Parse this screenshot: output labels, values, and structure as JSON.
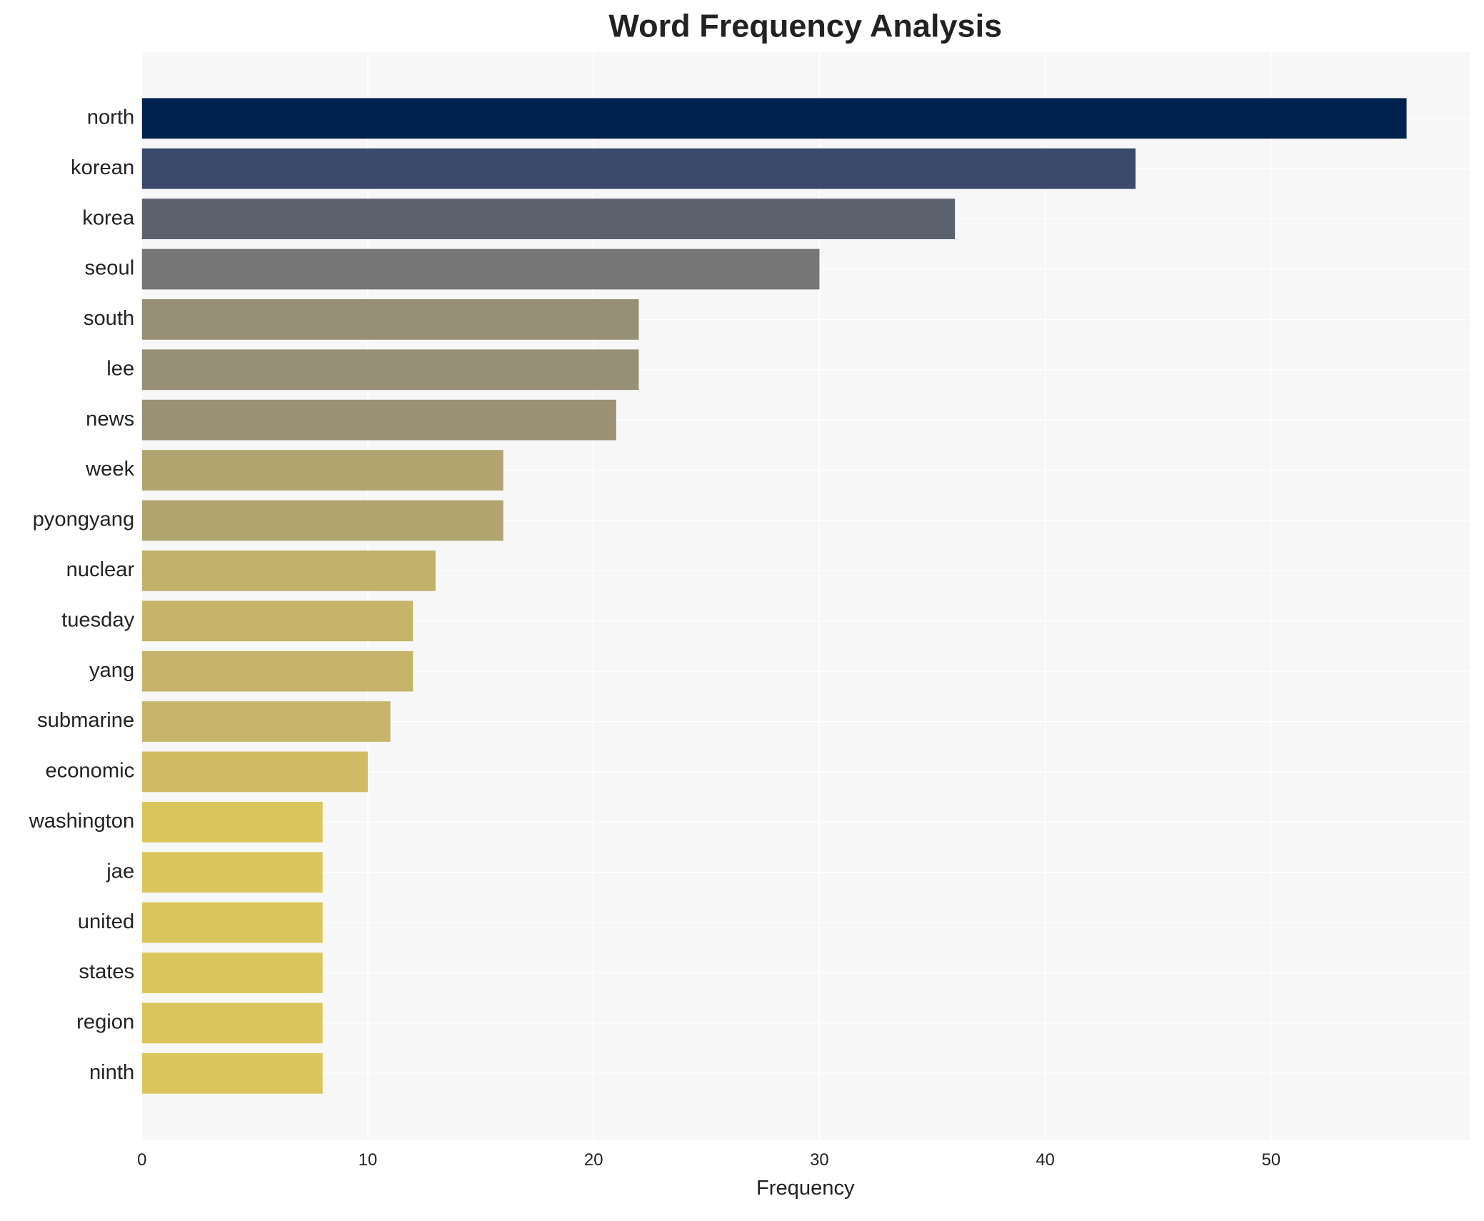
{
  "chart_data": {
    "type": "barh",
    "title": "Word Frequency Analysis",
    "x_label": "Frequency",
    "categories": [
      "north",
      "korean",
      "korea",
      "seoul",
      "south",
      "lee",
      "news",
      "week",
      "pyongyang",
      "nuclear",
      "tuesday",
      "yang",
      "submarine",
      "economic",
      "washington",
      "jae",
      "united",
      "states",
      "region",
      "ninth"
    ],
    "values": [
      56,
      44,
      36,
      30,
      22,
      22,
      21,
      16,
      16,
      13,
      12,
      12,
      11,
      10,
      8,
      8,
      8,
      8,
      8,
      8
    ],
    "colors": [
      "#00224e",
      "#3b496c",
      "#5c616e",
      "#767676",
      "#979077",
      "#979077",
      "#9a9176",
      "#b0a56f",
      "#b0a56f",
      "#c1b16a",
      "#c5b46a",
      "#c5b46a",
      "#c7b569",
      "#cfbc63",
      "#dbc65d",
      "#dbc65d",
      "#dbc65d",
      "#dbc65d",
      "#dbc65d",
      "#dbc65d"
    ],
    "xlim": [
      0,
      58.8
    ],
    "xticks": [
      0,
      10,
      20,
      30,
      40,
      50
    ],
    "grid": true
  }
}
